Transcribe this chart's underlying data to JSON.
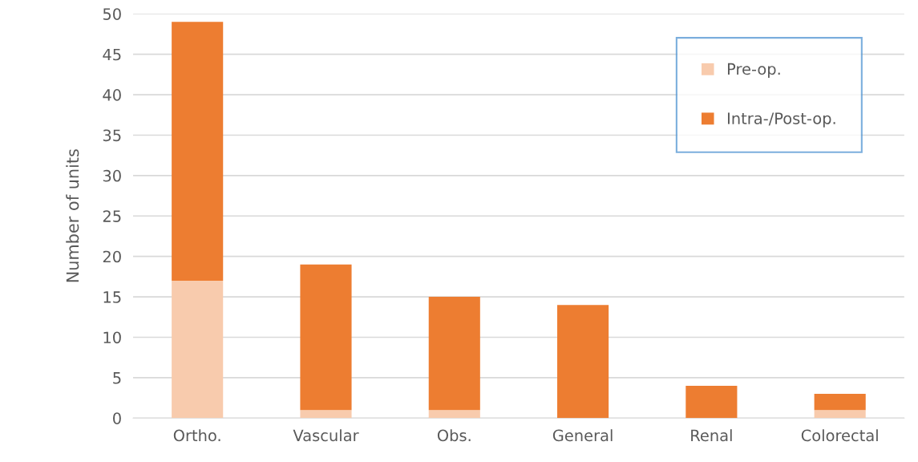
{
  "chart_data": {
    "type": "bar",
    "stacked": true,
    "ylabel": "Number of units",
    "categories": [
      "Ortho.",
      "Vascular",
      "Obs.",
      "General",
      "Renal",
      "Colorectal"
    ],
    "series": [
      {
        "name": "Pre-op.",
        "color": "#f8cbad",
        "values": [
          17,
          1,
          1,
          0,
          0,
          1
        ]
      },
      {
        "name": "Intra-/Post-op.",
        "color": "#ed7d31",
        "values": [
          32,
          18,
          14,
          14,
          4,
          2
        ]
      }
    ],
    "ylim": [
      0,
      50
    ],
    "yticks": [
      0,
      5,
      10,
      15,
      20,
      25,
      30,
      35,
      40,
      45,
      50
    ],
    "grid": "y",
    "legend": "top right"
  }
}
